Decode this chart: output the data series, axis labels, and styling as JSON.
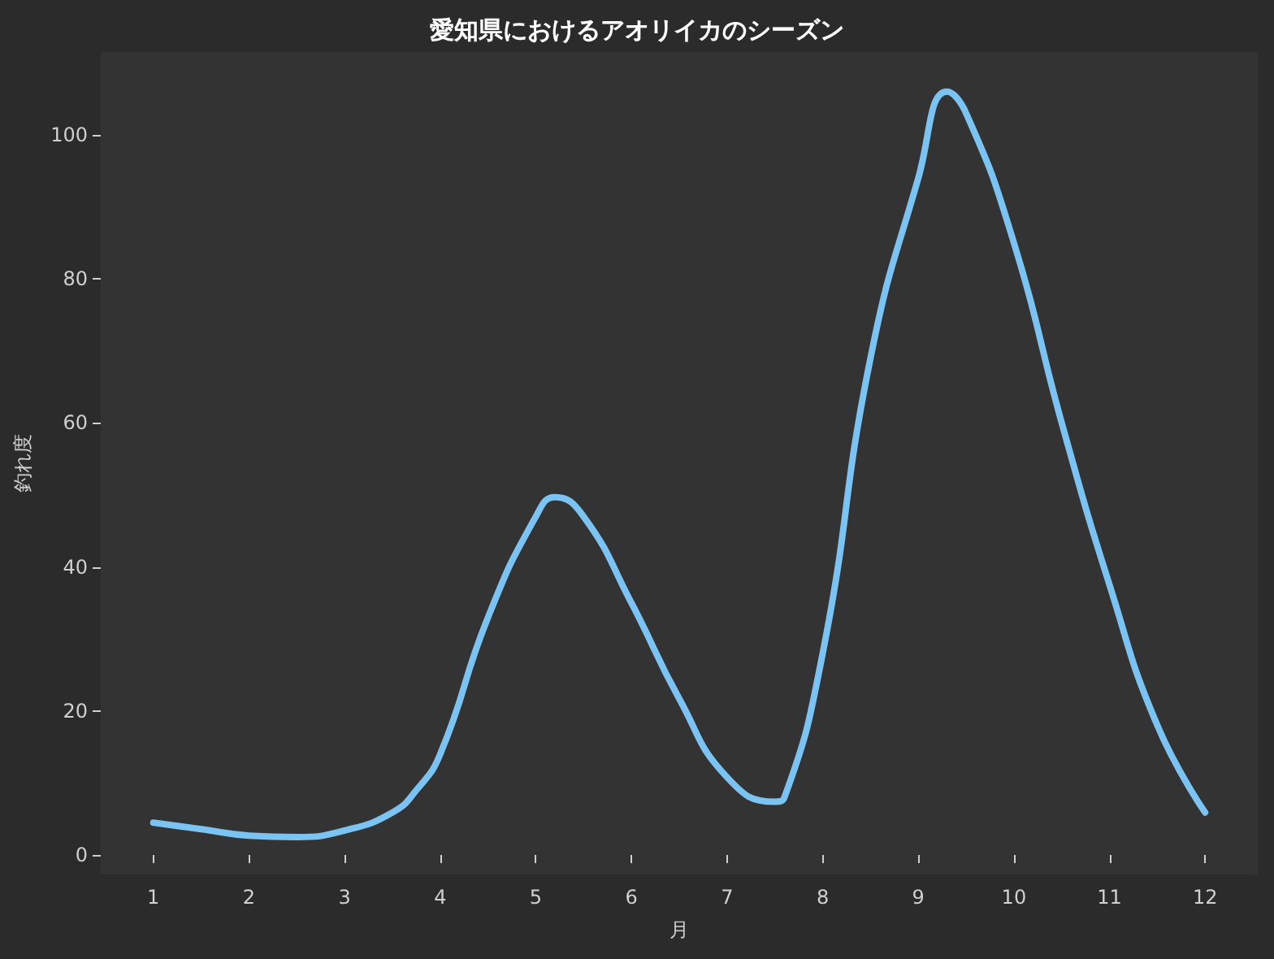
{
  "chart_data": {
    "type": "line",
    "title": "愛知県におけるアオリイカのシーズン",
    "xlabel": "月",
    "ylabel": "釣れ度",
    "series": [
      {
        "color": "#7ac3f2",
        "x": [
          1,
          1.5,
          2,
          2.5,
          3,
          3.5,
          3.75,
          4,
          4.5,
          5,
          5.2,
          5.5,
          6,
          6.5,
          7,
          7.5,
          7.6,
          8,
          8.5,
          9,
          9.3,
          9.5,
          10,
          10.5,
          11,
          11.5,
          12
        ],
        "values": [
          4.5,
          3.6,
          2.7,
          2.5,
          3.4,
          5.9,
          9,
          14,
          33,
          47,
          49.7,
          47,
          35,
          21.7,
          10.8,
          7.4,
          8,
          28,
          69,
          94,
          106,
          103,
          85,
          60,
          37.5,
          18,
          5.9
        ]
      }
    ],
    "xlim": [
      0.45,
      12.55
    ],
    "xticks": [
      1,
      2,
      3,
      4,
      5,
      6,
      7,
      8,
      9,
      10,
      11,
      12
    ],
    "ylim": [
      -2.7,
      111.5
    ],
    "yticks": [
      0,
      20,
      40,
      60,
      80,
      100
    ],
    "grid": false,
    "marker": "none",
    "line_style": "solid"
  }
}
